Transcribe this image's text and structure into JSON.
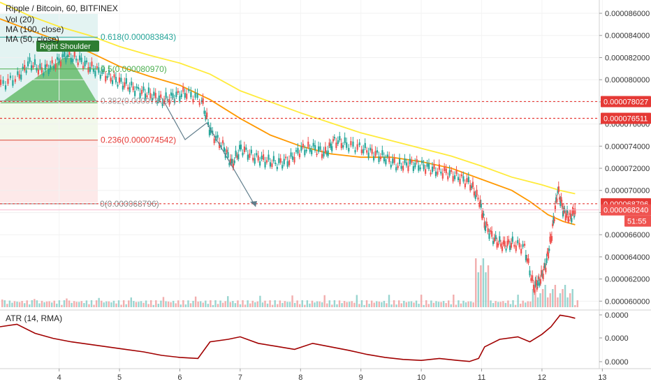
{
  "header": {
    "title": "Ripple / Bitcoin, 60, BITFINEX",
    "indicators": [
      "Vol (20)",
      "MA (100, close)",
      "MA (50, close)"
    ]
  },
  "annotations": {
    "right_shoulder": "Right Shoulder"
  },
  "fib_levels": [
    {
      "label": "0.618(0.000083843)",
      "value": 8.3843e-05,
      "color": "#26a69a"
    },
    {
      "label": "0.5(0.000080970)",
      "value": 8.097e-05,
      "color": "#4caf50"
    },
    {
      "label": "0.382(0.000078097)",
      "value": 7.8097e-05,
      "color": "#9e9e9e"
    },
    {
      "label": "0.236(0.000074542)",
      "value": 7.4542e-05,
      "color": "#e53935"
    },
    {
      "label": "0(0.000068796)",
      "value": 6.8796e-05,
      "color": "#888888"
    }
  ],
  "price_tags": [
    {
      "text": "0.000078027",
      "value": 7.8027e-05,
      "color": "#e53935"
    },
    {
      "text": "0.000076511",
      "value": 7.6511e-05,
      "color": "#e53935"
    },
    {
      "text": "0.000068796",
      "value": 6.8796e-05,
      "color": "#e53935"
    },
    {
      "text": "0.000068240",
      "value": 6.824e-05,
      "color": "#ef5350"
    },
    {
      "text": "51:55",
      "value": 6.76e-05,
      "color": "#ef5350"
    }
  ],
  "atr_panel": {
    "label": "ATR (14, RMA)",
    "y_ticks": [
      "0.0000",
      "0.0000",
      "0.0000"
    ]
  },
  "chart_data": {
    "type": "candlestick",
    "title": "Ripple / Bitcoin, 60, BITFINEX",
    "x_tick_labels": [
      "4",
      "5",
      "6",
      "7",
      "8",
      "9",
      "10",
      "11",
      "12",
      "13"
    ],
    "x_ticks": [
      4,
      5,
      6,
      7,
      8,
      9,
      10,
      11,
      12,
      13
    ],
    "xlim": [
      3.02,
      12.95
    ],
    "y_tick_labels": [
      "0.000086000",
      "0.000084000",
      "0.000082000",
      "0.000080000",
      "0.000078000",
      "0.000076000",
      "0.000074000",
      "0.000072000",
      "0.000070000",
      "0.000068000",
      "0.000066000",
      "0.000064000",
      "0.000062000",
      "0.000060000"
    ],
    "y_ticks": [
      8.6e-05,
      8.4e-05,
      8.2e-05,
      8e-05,
      7.8e-05,
      7.6e-05,
      7.4e-05,
      7.2e-05,
      7e-05,
      6.8e-05,
      6.6e-05,
      6.4e-05,
      6.2e-05,
      6e-05
    ],
    "ylim": [
      5.92e-05,
      8.72e-05
    ],
    "price_path": [
      [
        3.02,
        7.95e-05
      ],
      [
        3.3,
        8.02e-05
      ],
      [
        3.5,
        8.15e-05
      ],
      [
        3.7,
        8.08e-05
      ],
      [
        3.9,
        8.13e-05
      ],
      [
        4.1,
        8.22e-05
      ],
      [
        4.3,
        8.18e-05
      ],
      [
        4.5,
        8.11e-05
      ],
      [
        4.7,
        8.06e-05
      ],
      [
        4.9,
        8e-05
      ],
      [
        5.1,
        7.95e-05
      ],
      [
        5.3,
        7.9e-05
      ],
      [
        5.5,
        7.86e-05
      ],
      [
        5.7,
        7.81e-05
      ],
      [
        5.9,
        7.85e-05
      ],
      [
        6.1,
        7.88e-05
      ],
      [
        6.35,
        7.81e-05
      ],
      [
        6.5,
        7.52e-05
      ],
      [
        6.7,
        7.4e-05
      ],
      [
        6.85,
        7.23e-05
      ],
      [
        7.0,
        7.38e-05
      ],
      [
        7.2,
        7.3e-05
      ],
      [
        7.4,
        7.27e-05
      ],
      [
        7.6,
        7.24e-05
      ],
      [
        7.8,
        7.27e-05
      ],
      [
        8.0,
        7.37e-05
      ],
      [
        8.2,
        7.38e-05
      ],
      [
        8.4,
        7.33e-05
      ],
      [
        8.55,
        7.45e-05
      ],
      [
        8.75,
        7.41e-05
      ],
      [
        9.0,
        7.38e-05
      ],
      [
        9.2,
        7.33e-05
      ],
      [
        9.4,
        7.29e-05
      ],
      [
        9.6,
        7.22e-05
      ],
      [
        9.8,
        7.24e-05
      ],
      [
        10.0,
        7.22e-05
      ],
      [
        10.2,
        7.18e-05
      ],
      [
        10.4,
        7.16e-05
      ],
      [
        10.6,
        7.12e-05
      ],
      [
        10.8,
        7.06e-05
      ],
      [
        10.95,
        6.9e-05
      ],
      [
        11.05,
        6.68e-05
      ],
      [
        11.2,
        6.55e-05
      ],
      [
        11.35,
        6.5e-05
      ],
      [
        11.5,
        6.52e-05
      ],
      [
        11.7,
        6.48e-05
      ],
      [
        11.85,
        6.12e-05
      ],
      [
        11.95,
        6.18e-05
      ],
      [
        12.05,
        6.32e-05
      ],
      [
        12.15,
        6.6e-05
      ],
      [
        12.25,
        7e-05
      ],
      [
        12.35,
        6.8e-05
      ],
      [
        12.45,
        6.75e-05
      ],
      [
        12.55,
        6.82e-05
      ]
    ],
    "series": [
      {
        "name": "MA (100, close)",
        "color": "#ffeb3b",
        "points": [
          [
            3.02,
            8.7e-05
          ],
          [
            3.5,
            8.58e-05
          ],
          [
            4.0,
            8.48e-05
          ],
          [
            4.5,
            8.4e-05
          ],
          [
            5.0,
            8.3e-05
          ],
          [
            5.5,
            8.22e-05
          ],
          [
            6.0,
            8.15e-05
          ],
          [
            6.5,
            8.05e-05
          ],
          [
            7.0,
            7.9e-05
          ],
          [
            7.5,
            7.8e-05
          ],
          [
            8.0,
            7.7e-05
          ],
          [
            8.5,
            7.61e-05
          ],
          [
            9.0,
            7.52e-05
          ],
          [
            9.5,
            7.45e-05
          ],
          [
            10.0,
            7.38e-05
          ],
          [
            10.5,
            7.31e-05
          ],
          [
            11.0,
            7.22e-05
          ],
          [
            11.5,
            7.12e-05
          ],
          [
            12.0,
            7.05e-05
          ],
          [
            12.3,
            7e-05
          ],
          [
            12.55,
            6.97e-05
          ]
        ]
      },
      {
        "name": "MA (50, close)",
        "color": "#ff9800",
        "points": [
          [
            3.02,
            8.55e-05
          ],
          [
            3.5,
            8.45e-05
          ],
          [
            4.0,
            8.35e-05
          ],
          [
            4.5,
            8.25e-05
          ],
          [
            5.0,
            8.12e-05
          ],
          [
            5.5,
            8.03e-05
          ],
          [
            6.0,
            7.95e-05
          ],
          [
            6.5,
            7.82e-05
          ],
          [
            7.0,
            7.65e-05
          ],
          [
            7.5,
            7.5e-05
          ],
          [
            8.0,
            7.4e-05
          ],
          [
            8.5,
            7.33e-05
          ],
          [
            9.0,
            7.3e-05
          ],
          [
            9.5,
            7.3e-05
          ],
          [
            10.0,
            7.26e-05
          ],
          [
            10.5,
            7.2e-05
          ],
          [
            11.0,
            7.1e-05
          ],
          [
            11.5,
            7e-05
          ],
          [
            11.8,
            6.9e-05
          ],
          [
            12.1,
            6.78e-05
          ],
          [
            12.35,
            6.72e-05
          ],
          [
            12.55,
            6.69e-05
          ]
        ]
      }
    ],
    "atr_points": [
      [
        3.02,
        0.75
      ],
      [
        3.3,
        0.8
      ],
      [
        3.6,
        0.62
      ],
      [
        3.9,
        0.52
      ],
      [
        4.2,
        0.45
      ],
      [
        4.5,
        0.4
      ],
      [
        4.8,
        0.35
      ],
      [
        5.1,
        0.3
      ],
      [
        5.4,
        0.25
      ],
      [
        5.7,
        0.18
      ],
      [
        6.0,
        0.14
      ],
      [
        6.3,
        0.12
      ],
      [
        6.5,
        0.45
      ],
      [
        6.8,
        0.5
      ],
      [
        7.0,
        0.55
      ],
      [
        7.3,
        0.42
      ],
      [
        7.6,
        0.36
      ],
      [
        7.9,
        0.3
      ],
      [
        8.2,
        0.42
      ],
      [
        8.5,
        0.35
      ],
      [
        8.8,
        0.28
      ],
      [
        9.1,
        0.2
      ],
      [
        9.4,
        0.14
      ],
      [
        9.7,
        0.1
      ],
      [
        10.0,
        0.08
      ],
      [
        10.3,
        0.12
      ],
      [
        10.6,
        0.08
      ],
      [
        10.8,
        0.06
      ],
      [
        10.95,
        0.12
      ],
      [
        11.05,
        0.35
      ],
      [
        11.3,
        0.5
      ],
      [
        11.6,
        0.55
      ],
      [
        11.8,
        0.45
      ],
      [
        12.0,
        0.6
      ],
      [
        12.15,
        0.75
      ],
      [
        12.3,
        0.98
      ],
      [
        12.45,
        0.95
      ],
      [
        12.55,
        0.92
      ]
    ],
    "volume_hint": "relative heights shown as bars",
    "grid": true
  }
}
